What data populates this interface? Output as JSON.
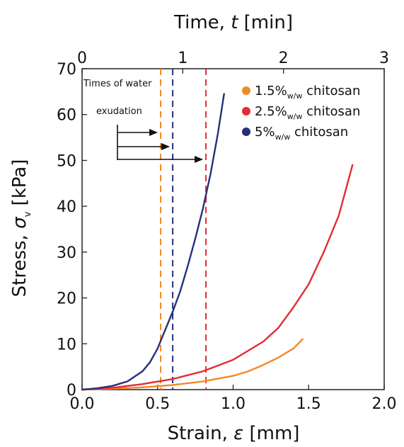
{
  "chart_data": {
    "type": "line",
    "xlabel_prefix": "Strain, ",
    "xlabel_symbol": "ε",
    "xlabel_unit": " [mm]",
    "ylabel_prefix": "Stress, ",
    "ylabel_symbol": "σ",
    "ylabel_sub": "v",
    "ylabel_unit": " [kPa]",
    "top_xlabel_prefix": "Time, ",
    "top_xlabel_symbol": "t",
    "top_xlabel_unit": " [min]",
    "xlim": [
      0.0,
      2.0
    ],
    "ylim": [
      0,
      70
    ],
    "top_xlim": [
      0,
      3
    ],
    "x_ticks": [
      "0.0",
      "0.5",
      "1.0",
      "1.5",
      "2.0"
    ],
    "x_tick_values": [
      0.0,
      0.5,
      1.0,
      1.5,
      2.0
    ],
    "y_ticks": [
      "0",
      "10",
      "20",
      "30",
      "40",
      "50",
      "60",
      "70"
    ],
    "y_tick_values": [
      0,
      10,
      20,
      30,
      40,
      50,
      60,
      70
    ],
    "top_ticks": [
      "0",
      "1",
      "2",
      "3"
    ],
    "top_tick_values": [
      0,
      1,
      2,
      3
    ],
    "grid": false,
    "legend_placement": "top-right",
    "series": [
      {
        "name_main": "1.5%",
        "name_sub": "w/w",
        "name_tail": " chitosan",
        "color": "#f08a24",
        "x": [
          0,
          0.2,
          0.4,
          0.6,
          0.8,
          1.0,
          1.1,
          1.2,
          1.3,
          1.4,
          1.46
        ],
        "y": [
          0,
          0.2,
          0.5,
          1.0,
          1.8,
          3.0,
          4.0,
          5.4,
          7.0,
          9.0,
          11.0
        ]
      },
      {
        "name_main": "2.5%",
        "name_sub": "w/w",
        "name_tail": " chitosan",
        "color": "#e42a34",
        "x": [
          0,
          0.2,
          0.4,
          0.6,
          0.8,
          1.0,
          1.2,
          1.3,
          1.4,
          1.5,
          1.6,
          1.7,
          1.79
        ],
        "y": [
          0,
          0.4,
          1.2,
          2.3,
          4.0,
          6.5,
          10.5,
          13.5,
          18.0,
          23.0,
          30.0,
          38.0,
          49.0
        ]
      },
      {
        "name_main": "5%",
        "name_sub": "w/w",
        "name_tail": " chitosan",
        "color": "#26307a",
        "x": [
          0,
          0.1,
          0.2,
          0.3,
          0.4,
          0.45,
          0.5,
          0.55,
          0.6,
          0.65,
          0.7,
          0.75,
          0.8,
          0.85,
          0.9,
          0.94
        ],
        "y": [
          0,
          0.3,
          0.8,
          1.8,
          4.0,
          6.0,
          9.0,
          13.0,
          17.0,
          21.5,
          27.0,
          33.0,
          39.5,
          47.0,
          56.0,
          64.5
        ]
      }
    ],
    "vlines": [
      {
        "x": 0.52,
        "color": "#f08a24"
      },
      {
        "x": 0.6,
        "color": "#26307a"
      },
      {
        "x": 0.82,
        "color": "#e42a34"
      }
    ],
    "annotation": {
      "line1": "Times of water",
      "line2": "exudation"
    }
  }
}
